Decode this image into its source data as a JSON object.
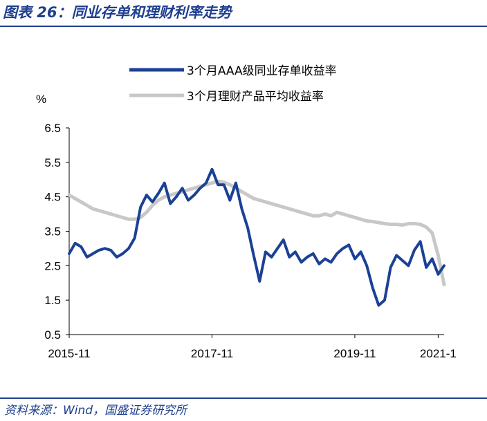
{
  "header": {
    "title": "图表 26：同业存单和理财利率走势"
  },
  "footer": {
    "source": "资料来源：Wind，国盛证券研究所"
  },
  "chart_data": {
    "type": "line",
    "ylabel": "%",
    "ylim": [
      0.5,
      6.5
    ],
    "yticks": [
      "6.5",
      "5.5",
      "4.5",
      "3.5",
      "2.5",
      "1.5",
      "0.5"
    ],
    "xlim": [
      "2015-11",
      "2021-02"
    ],
    "xticks": [
      "2015-11",
      "2017-11",
      "2019-11",
      "2021-1"
    ],
    "grid": false,
    "legend_position": "top",
    "series": [
      {
        "name": "3个月AAA级同业存单收益率",
        "color": "#1b4196",
        "x": [
          "2015-11",
          "2015-12",
          "2016-01",
          "2016-02",
          "2016-03",
          "2016-04",
          "2016-05",
          "2016-06",
          "2016-07",
          "2016-08",
          "2016-09",
          "2016-10",
          "2016-11",
          "2016-12",
          "2017-01",
          "2017-02",
          "2017-03",
          "2017-04",
          "2017-05",
          "2017-06",
          "2017-07",
          "2017-08",
          "2017-09",
          "2017-10",
          "2017-11",
          "2017-12",
          "2018-01",
          "2018-02",
          "2018-03",
          "2018-04",
          "2018-05",
          "2018-06",
          "2018-07",
          "2018-08",
          "2018-09",
          "2018-10",
          "2018-11",
          "2018-12",
          "2019-01",
          "2019-02",
          "2019-03",
          "2019-04",
          "2019-05",
          "2019-06",
          "2019-07",
          "2019-08",
          "2019-09",
          "2019-10",
          "2019-11",
          "2019-12",
          "2020-01",
          "2020-02",
          "2020-03",
          "2020-04",
          "2020-05",
          "2020-06",
          "2020-07",
          "2020-08",
          "2020-09",
          "2020-10",
          "2020-11",
          "2020-12",
          "2021-01",
          "2021-02"
        ],
        "values": [
          2.85,
          3.15,
          3.05,
          2.75,
          2.85,
          2.95,
          3.0,
          2.95,
          2.75,
          2.85,
          3.0,
          3.3,
          4.2,
          4.55,
          4.35,
          4.6,
          4.9,
          4.3,
          4.5,
          4.75,
          4.4,
          4.55,
          4.75,
          4.9,
          5.3,
          4.85,
          4.85,
          4.4,
          4.9,
          4.15,
          3.6,
          2.8,
          2.05,
          2.9,
          2.75,
          3.0,
          3.25,
          2.75,
          2.9,
          2.6,
          2.75,
          2.85,
          2.55,
          2.7,
          2.6,
          2.85,
          3.0,
          3.1,
          2.7,
          2.9,
          2.5,
          1.85,
          1.35,
          1.5,
          2.45,
          2.8,
          2.65,
          2.5,
          2.95,
          3.2,
          2.45,
          2.7,
          2.25,
          2.5
        ]
      },
      {
        "name": "3个月理财产品平均收益率",
        "color": "#c8c8c8",
        "x": [
          "2015-11",
          "2015-12",
          "2016-01",
          "2016-02",
          "2016-03",
          "2016-04",
          "2016-05",
          "2016-06",
          "2016-07",
          "2016-08",
          "2016-09",
          "2016-10",
          "2016-11",
          "2016-12",
          "2017-01",
          "2017-02",
          "2017-03",
          "2017-04",
          "2017-05",
          "2017-06",
          "2017-07",
          "2017-08",
          "2017-09",
          "2017-10",
          "2017-11",
          "2017-12",
          "2018-01",
          "2018-02",
          "2018-03",
          "2018-04",
          "2018-05",
          "2018-06",
          "2018-07",
          "2018-08",
          "2018-09",
          "2018-10",
          "2018-11",
          "2018-12",
          "2019-01",
          "2019-02",
          "2019-03",
          "2019-04",
          "2019-05",
          "2019-06",
          "2019-07",
          "2019-08",
          "2019-09",
          "2019-10",
          "2019-11",
          "2019-12",
          "2020-01",
          "2020-02",
          "2020-03",
          "2020-04",
          "2020-05",
          "2020-06",
          "2020-07",
          "2020-08",
          "2020-09",
          "2020-10",
          "2020-11",
          "2020-12",
          "2021-01",
          "2021-02"
        ],
        "values": [
          4.55,
          4.45,
          4.35,
          4.25,
          4.15,
          4.1,
          4.05,
          4.0,
          3.95,
          3.9,
          3.85,
          3.85,
          3.9,
          4.05,
          4.25,
          4.4,
          4.5,
          4.55,
          4.6,
          4.65,
          4.7,
          4.75,
          4.8,
          4.85,
          4.9,
          4.95,
          4.92,
          4.85,
          4.75,
          4.65,
          4.55,
          4.45,
          4.4,
          4.35,
          4.3,
          4.25,
          4.2,
          4.15,
          4.1,
          4.05,
          4.0,
          3.95,
          3.95,
          4.0,
          3.95,
          4.05,
          4.0,
          3.95,
          3.9,
          3.85,
          3.8,
          3.78,
          3.75,
          3.72,
          3.7,
          3.7,
          3.68,
          3.72,
          3.72,
          3.7,
          3.62,
          3.45,
          2.8,
          1.95
        ]
      }
    ]
  }
}
